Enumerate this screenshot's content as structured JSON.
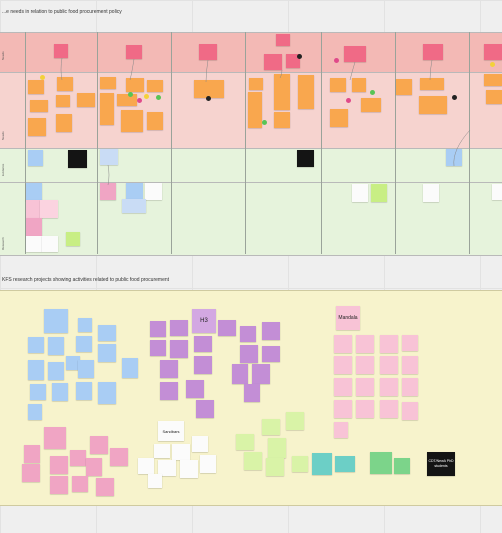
{
  "board": {
    "section1_title": "...e needs in relation to public food procurement policy",
    "section2_title": "KFS research projects showing activities related to public food procurement"
  },
  "table_rows": [
    {
      "label": "Needs"
    },
    {
      "label": "Needs"
    },
    {
      "label": "Evidence"
    },
    {
      "label": "Research"
    }
  ],
  "cluster_headers": {
    "pink_cluster": "Mandala",
    "purple_cluster": "H3",
    "white_cluster": "Sandbars",
    "black_note": "CDT/NewA PhD students"
  },
  "colors": {
    "pink_row": "#f6d3cf",
    "green_row": "#e6f3dc",
    "yellow_section": "#f7f3cc",
    "accent_red": "#f06a86",
    "accent_orange": "#f9a74e"
  }
}
